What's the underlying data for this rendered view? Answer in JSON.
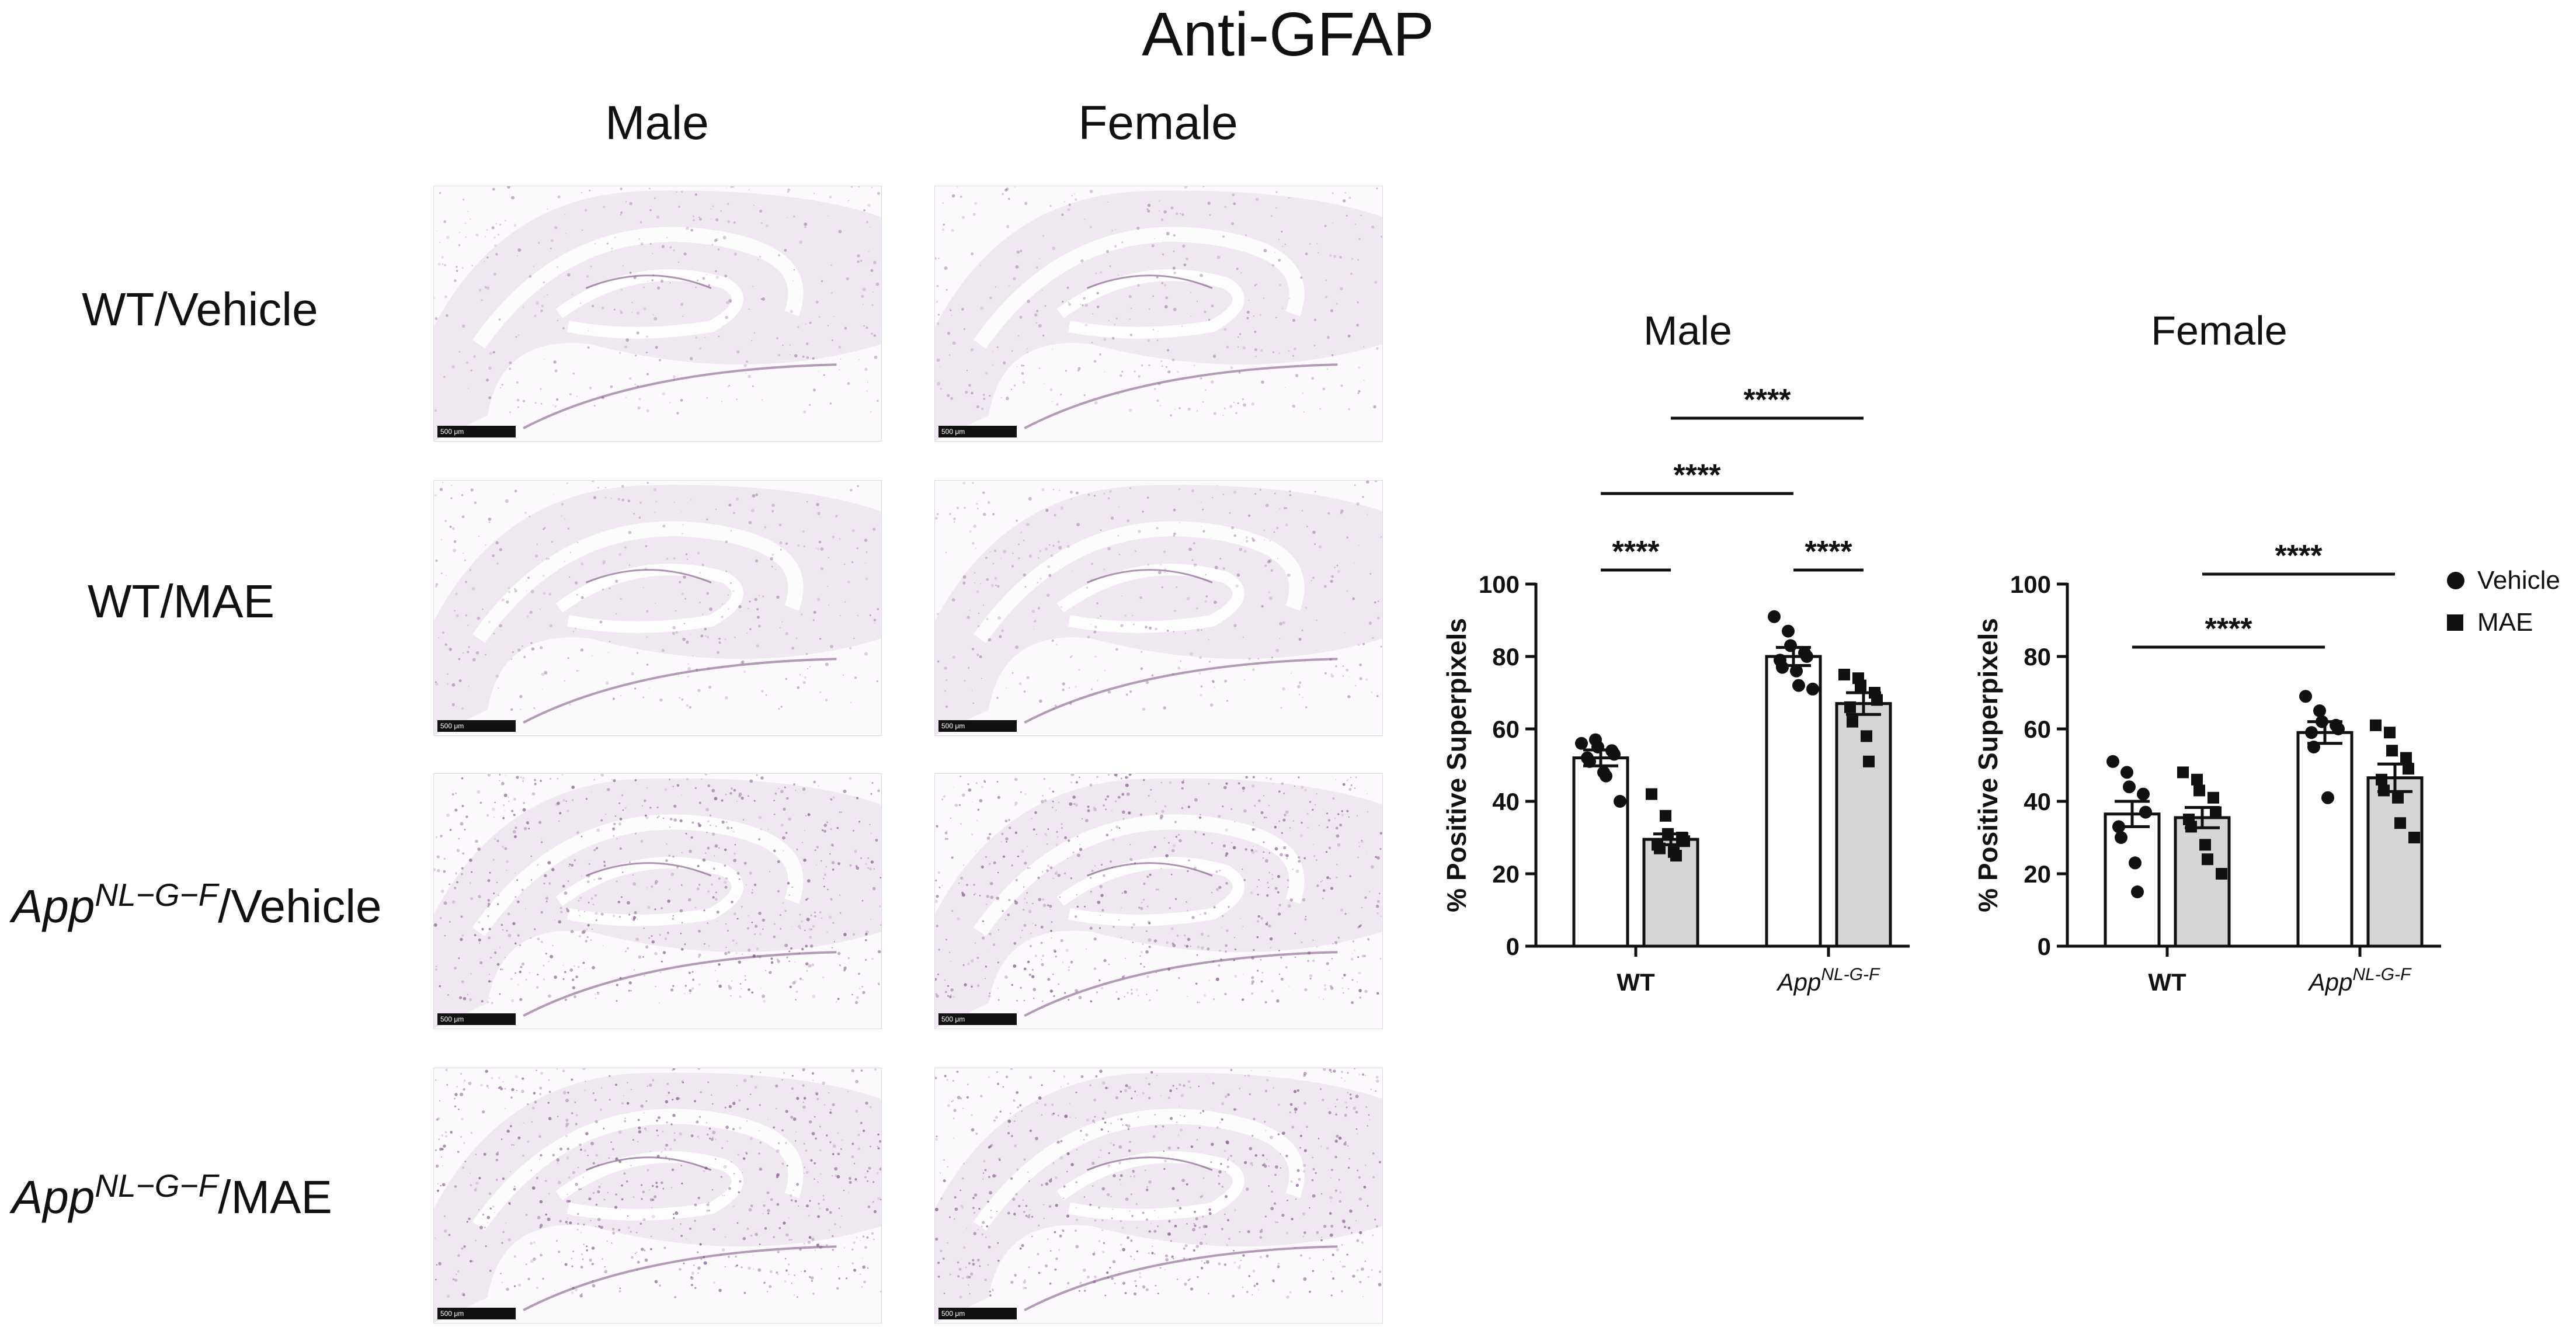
{
  "figure": {
    "title": "Anti-GFAP",
    "column_headers": [
      "Male",
      "Female"
    ],
    "row_labels": [
      {
        "italic": "",
        "sup": "",
        "rest": "WT/Vehicle"
      },
      {
        "italic": "",
        "sup": "",
        "rest": "WT/MAE"
      },
      {
        "italic": "App",
        "sup": "NL−G−F",
        "rest": "/Vehicle"
      },
      {
        "italic": "App",
        "sup": "NL−G−F",
        "rest": "/MAE"
      }
    ],
    "scale_bar_label": "500 μm"
  },
  "legend": {
    "items": [
      {
        "label": "Vehicle",
        "marker": "circle"
      },
      {
        "label": "MAE",
        "marker": "square"
      }
    ]
  },
  "colors": {
    "vehicle_bar": "#ffffff",
    "mae_bar": "#d6d6d6",
    "stain": "#7a4d82",
    "tissue": "#efe7f0",
    "ink": "#111111"
  },
  "chart_data": [
    {
      "type": "bar",
      "title": "Male",
      "ylabel": "% Positive Superpixels",
      "ylim": [
        0,
        100
      ],
      "yticks": [
        0,
        20,
        40,
        60,
        80,
        100
      ],
      "groups": [
        {
          "label": "WT",
          "italic": "",
          "sup": ""
        },
        {
          "label": "",
          "italic": "App",
          "sup": "NL-G-F"
        }
      ],
      "series": [
        {
          "name": "Vehicle",
          "values": [
            52,
            80
          ],
          "sem": [
            2.2,
            2.5
          ],
          "points": [
            [
              56,
              57,
              55,
              54,
              53,
              52,
              51,
              48,
              47,
              40
            ],
            [
              91,
              87,
              83,
              81,
              80,
              79,
              77,
              76,
              72,
              71
            ]
          ]
        },
        {
          "name": "MAE",
          "values": [
            29.5,
            67
          ],
          "sem": [
            1.5,
            3
          ],
          "points": [
            [
              42,
              36,
              31,
              30,
              29,
              28,
              27,
              26,
              25
            ],
            [
              75,
              74,
              72,
              70,
              68,
              66,
              62,
              58,
              51
            ]
          ]
        }
      ],
      "significance": [
        {
          "label": "****",
          "from": "WT-Vehicle",
          "to": "WT-MAE"
        },
        {
          "label": "****",
          "from": "App-Vehicle",
          "to": "App-MAE"
        },
        {
          "label": "****",
          "from": "WT-Vehicle",
          "to": "App-Vehicle"
        },
        {
          "label": "****",
          "from": "WT-MAE",
          "to": "App-MAE"
        }
      ]
    },
    {
      "type": "bar",
      "title": "Female",
      "ylabel": "% Positive Superpixels",
      "ylim": [
        0,
        100
      ],
      "yticks": [
        0,
        20,
        40,
        60,
        80,
        100
      ],
      "groups": [
        {
          "label": "WT",
          "italic": "",
          "sup": ""
        },
        {
          "label": "",
          "italic": "App",
          "sup": "NL-G-F"
        }
      ],
      "series": [
        {
          "name": "Vehicle",
          "values": [
            36.5,
            59
          ],
          "sem": [
            3.5,
            3
          ],
          "points": [
            [
              51,
              48,
              44,
              42,
              37,
              33,
              30,
              23,
              15
            ],
            [
              69,
              65,
              62,
              61,
              60,
              59,
              55,
              41
            ]
          ]
        },
        {
          "name": "MAE",
          "values": [
            35.5,
            46.5
          ],
          "sem": [
            2.8,
            3.8
          ],
          "points": [
            [
              48,
              46,
              43,
              41,
              37,
              35,
              33,
              28,
              24,
              20
            ],
            [
              61,
              59,
              54,
              52,
              49,
              46,
              43,
              41,
              34,
              30
            ]
          ]
        }
      ],
      "significance": [
        {
          "label": "****",
          "from": "WT-Vehicle",
          "to": "App-Vehicle"
        },
        {
          "label": "****",
          "from": "WT-MAE",
          "to": "App-MAE"
        }
      ]
    }
  ]
}
